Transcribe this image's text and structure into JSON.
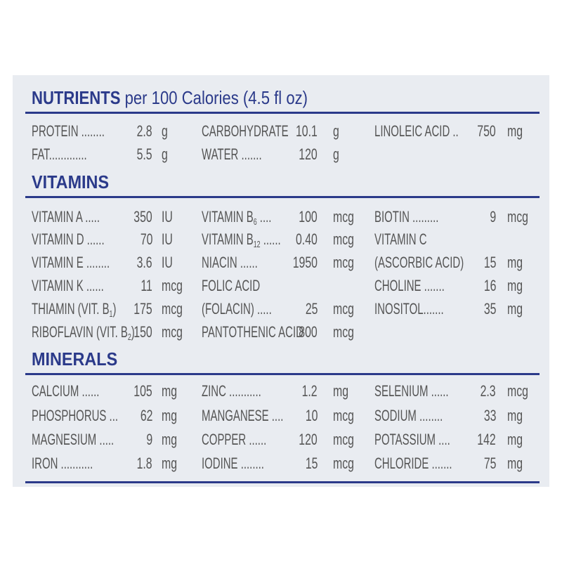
{
  "title": {
    "bold": "NUTRIENTS",
    "rest": " per 100 Calories (4.5 fl oz)"
  },
  "sections": [
    {
      "heading": "",
      "rows": [
        [
          {
            "label": "PROTEIN ........",
            "value": "2.8",
            "unit": "g"
          },
          {
            "label": "CARBOHYDRATE",
            "value": "10.1",
            "unit": "g"
          },
          {
            "label": "LINOLEIC ACID ..",
            "value": "750",
            "unit": "mg"
          }
        ],
        [
          {
            "label": "FAT.............",
            "value": "5.5",
            "unit": "g"
          },
          {
            "label": "WATER .......",
            "value": "120",
            "unit": "g"
          },
          null
        ]
      ]
    },
    {
      "heading": "VITAMINS",
      "rows": [
        [
          {
            "label": "VITAMIN A .....",
            "value": "350",
            "unit": "IU"
          },
          {
            "label": "VITAMIN B",
            "sub": "6",
            "after": " ....",
            "value": "100",
            "unit": "mcg"
          },
          {
            "label": "BIOTIN .........",
            "value": "9",
            "unit": "mcg"
          }
        ],
        [
          {
            "label": "VITAMIN D ......",
            "value": "70",
            "unit": "IU"
          },
          {
            "label": "VITAMIN B",
            "sub": "12",
            "after": " ......",
            "value": "0.40",
            "unit": "mcg"
          },
          {
            "label": "VITAMIN C",
            "value": "",
            "unit": ""
          }
        ],
        [
          {
            "label": "VITAMIN E ........",
            "value": "3.6",
            "unit": "IU"
          },
          {
            "label": "NIACIN ......",
            "value": "1950",
            "unit": "mcg"
          },
          {
            "label": " (ASCORBIC ACID)",
            "value": "15",
            "unit": "mg"
          }
        ],
        [
          {
            "label": "VITAMIN K ......",
            "value": "11",
            "unit": "mcg"
          },
          {
            "label": "FOLIC ACID",
            "value": "",
            "unit": ""
          },
          {
            "label": "CHOLINE .......",
            "value": "16",
            "unit": "mg"
          }
        ],
        [
          {
            "label": "THIAMIN (VIT. B",
            "sub": "1",
            "after": ")",
            "value": "175",
            "unit": "mcg"
          },
          {
            "label": " (FOLACIN) .....",
            "value": "25",
            "unit": "mcg"
          },
          {
            "label": "INOSITOL.......",
            "value": "35",
            "unit": "mg"
          }
        ],
        [
          {
            "label": "RIBOFLAVIN (VIT. B",
            "sub": "2",
            "after": ")",
            "value": "150",
            "unit": "mcg"
          },
          {
            "label": "PANTOTHENIC ACID",
            "value": "800",
            "unit": "mcg"
          },
          null
        ]
      ]
    },
    {
      "heading": "MINERALS",
      "rows": [
        [
          {
            "label": "CALCIUM ......",
            "value": "105",
            "unit": "mg"
          },
          {
            "label": "ZINC ...........",
            "value": "1.2",
            "unit": "mg"
          },
          {
            "label": "SELENIUM ......",
            "value": "2.3",
            "unit": "mcg"
          }
        ],
        [
          {
            "label": "PHOSPHORUS ...",
            "value": "62",
            "unit": "mg"
          },
          {
            "label": "MANGANESE ....",
            "value": "10",
            "unit": "mcg"
          },
          {
            "label": "SODIUM ........",
            "value": "33",
            "unit": "mg"
          }
        ],
        [
          {
            "label": "MAGNESIUM .....",
            "value": "9",
            "unit": "mg"
          },
          {
            "label": "COPPER ......",
            "value": "120",
            "unit": "mcg"
          },
          {
            "label": "POTASSIUM ....",
            "value": "142",
            "unit": "mg"
          }
        ],
        [
          {
            "label": "IRON ...........",
            "value": "1.8",
            "unit": "mg"
          },
          {
            "label": "IODINE ........",
            "value": "15",
            "unit": "mcg"
          },
          {
            "label": "CHLORIDE .......",
            "value": "75",
            "unit": "mg"
          }
        ]
      ]
    }
  ],
  "colors": {
    "heading": "#2b3a8a",
    "text": "#555555",
    "panel": "#e9ecf1"
  }
}
